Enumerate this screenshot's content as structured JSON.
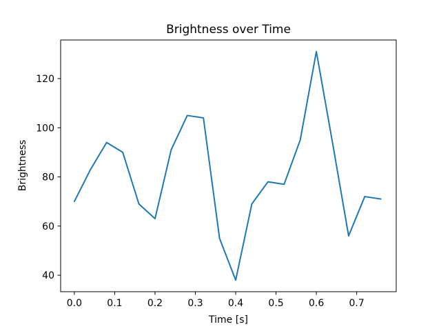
{
  "figure": {
    "background": "#ffffff",
    "text_color": "#000000"
  },
  "chart_data": {
    "type": "line",
    "title": "Brightness over Time",
    "xlabel": "Time [s]",
    "ylabel": "Brightness",
    "x": [
      0.0,
      0.04,
      0.08,
      0.12,
      0.16,
      0.2,
      0.24,
      0.28,
      0.32,
      0.36,
      0.4,
      0.44,
      0.48,
      0.52,
      0.56,
      0.6,
      0.64,
      0.68,
      0.72,
      0.76
    ],
    "series": [
      {
        "name": "Brightness",
        "color": "#1f77b4",
        "values": [
          70,
          83,
          94,
          90,
          69,
          63,
          91,
          105,
          104,
          55,
          38,
          69,
          78,
          77,
          95,
          131,
          94,
          56,
          72,
          71
        ]
      }
    ],
    "xlim": [
      -0.034,
      0.798
    ],
    "ylim": [
      33.3,
      135.7
    ],
    "xticks": [
      0.0,
      0.1,
      0.2,
      0.3,
      0.4,
      0.5,
      0.6,
      0.7
    ],
    "xtick_labels": [
      "0.0",
      "0.1",
      "0.2",
      "0.3",
      "0.4",
      "0.5",
      "0.6",
      "0.7"
    ],
    "yticks": [
      40,
      60,
      80,
      100,
      120
    ],
    "ytick_labels": [
      "40",
      "60",
      "80",
      "100",
      "120"
    ],
    "grid": false,
    "legend": "none"
  }
}
